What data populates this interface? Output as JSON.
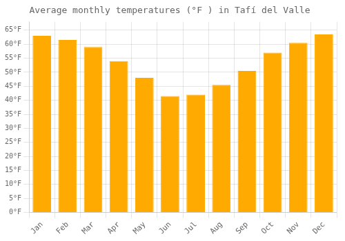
{
  "chart_data": {
    "type": "bar",
    "title": "Average monthly temperatures (°F ) in Tafí del Valle",
    "categories": [
      "Jan",
      "Feb",
      "Mar",
      "Apr",
      "May",
      "Jun",
      "Jul",
      "Aug",
      "Sep",
      "Oct",
      "Nov",
      "Dec"
    ],
    "values": [
      63,
      61.5,
      59,
      54,
      48,
      41.5,
      42,
      45.5,
      50.5,
      57,
      60.5,
      63.5
    ],
    "color": "#FFAA00",
    "ylim": [
      0,
      68
    ],
    "yticks": [
      {
        "value": 0,
        "label": "0°F"
      },
      {
        "value": 5,
        "label": "5°F"
      },
      {
        "value": 10,
        "label": "10°F"
      },
      {
        "value": 15,
        "label": "15°F"
      },
      {
        "value": 20,
        "label": "20°F"
      },
      {
        "value": 25,
        "label": "25°F"
      },
      {
        "value": 30,
        "label": "30°F"
      },
      {
        "value": 35,
        "label": "35°F"
      },
      {
        "value": 40,
        "label": "40°F"
      },
      {
        "value": 45,
        "label": "45°F"
      },
      {
        "value": 50,
        "label": "50°F"
      },
      {
        "value": 55,
        "label": "55°F"
      },
      {
        "value": 60,
        "label": "60°F"
      },
      {
        "value": 65,
        "label": "65°F"
      }
    ],
    "grid": true
  }
}
